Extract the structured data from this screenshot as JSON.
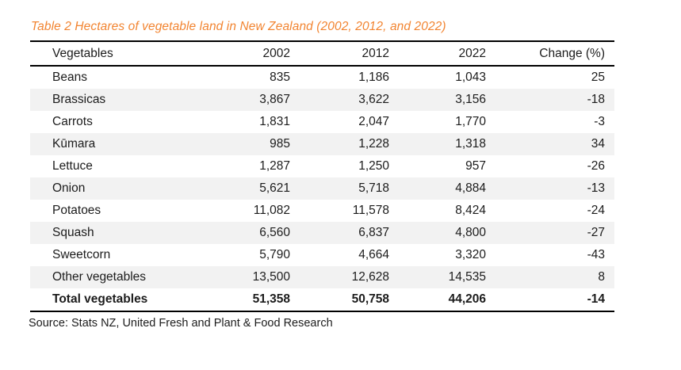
{
  "title": "Table 2 Hectares of vegetable land in New Zealand (2002, 2012, and 2022)",
  "source": "Source: Stats NZ, United Fresh and Plant & Food Research",
  "colors": {
    "title_accent": "#F28532",
    "row_shade": "#F2F2F2",
    "rule": "#000000",
    "text": "#1C1C1C"
  },
  "chart_data": {
    "type": "table",
    "title": "Table 2 Hectares of vegetable land in New Zealand (2002, 2012, and 2022)",
    "columns": [
      "Vegetables",
      "2002",
      "2012",
      "2022",
      "Change (%)"
    ],
    "rows": [
      [
        "Beans",
        "835",
        "1,186",
        "1,043",
        "25"
      ],
      [
        "Brassicas",
        "3,867",
        "3,622",
        "3,156",
        "-18"
      ],
      [
        "Carrots",
        "1,831",
        "2,047",
        "1,770",
        "-3"
      ],
      [
        "Kūmara",
        "985",
        "1,228",
        "1,318",
        "34"
      ],
      [
        "Lettuce",
        "1,287",
        "1,250",
        "957",
        "-26"
      ],
      [
        "Onion",
        "5,621",
        "5,718",
        "4,884",
        "-13"
      ],
      [
        "Potatoes",
        "11,082",
        "11,578",
        "8,424",
        "-24"
      ],
      [
        "Squash",
        "6,560",
        "6,837",
        "4,800",
        "-27"
      ],
      [
        "Sweetcorn",
        "5,790",
        "4,664",
        "3,320",
        "-43"
      ],
      [
        "Other vegetables",
        "13,500",
        "12,628",
        "14,535",
        "8"
      ]
    ],
    "total_row": [
      "Total vegetables",
      "51,358",
      "50,758",
      "44,206",
      "-14"
    ],
    "layout": {
      "shaded_row_indexes": [
        1,
        3,
        5,
        7,
        9
      ],
      "numeric_alignment": "right"
    }
  }
}
